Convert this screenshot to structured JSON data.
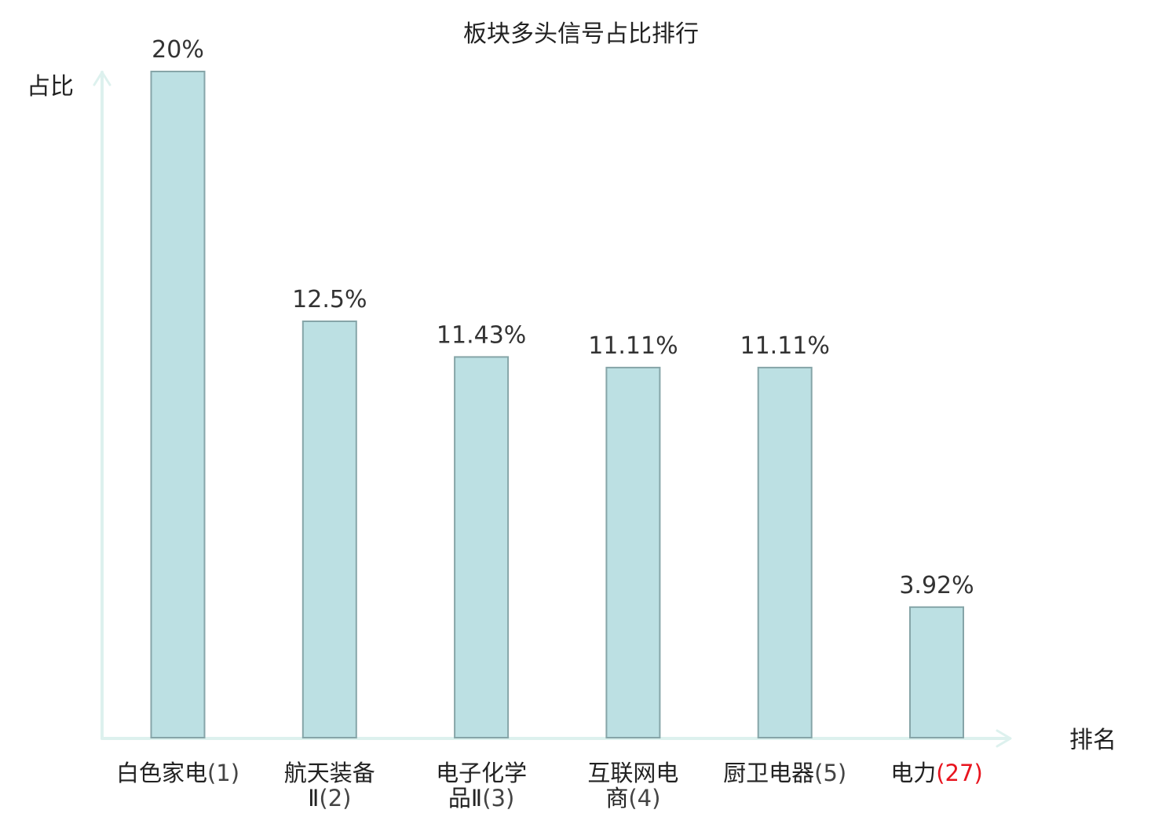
{
  "chart_data": {
    "type": "bar",
    "title": "板块多头信号占比排行",
    "ylabel": "占比",
    "xlabel": "排名",
    "ylim": [
      0,
      20
    ],
    "grid": false,
    "categories": [
      {
        "lines": [
          "白色家电"
        ],
        "rank": "(1)",
        "highlight": false
      },
      {
        "lines": [
          "航天装备",
          "Ⅱ"
        ],
        "rank": "(2)",
        "highlight": false
      },
      {
        "lines": [
          "电子化学",
          "品Ⅱ"
        ],
        "rank": "(3)",
        "highlight": false
      },
      {
        "lines": [
          "互联网电",
          "商"
        ],
        "rank": "(4)",
        "highlight": false
      },
      {
        "lines": [
          "厨卫电器"
        ],
        "rank": "(5)",
        "highlight": false
      },
      {
        "lines": [
          "电力"
        ],
        "rank": "(27)",
        "highlight": true
      }
    ],
    "values": [
      20,
      12.5,
      11.43,
      11.11,
      11.11,
      3.92
    ],
    "value_labels": [
      "20%",
      "12.5%",
      "11.43%",
      "11.11%",
      "11.11%",
      "3.92%"
    ]
  },
  "colors": {
    "bar_fill": "#bce0e3",
    "bar_stroke": "#86a5a8",
    "axis": "#ddf1ee",
    "highlight_text": "#e8141e",
    "text": "#222222"
  }
}
